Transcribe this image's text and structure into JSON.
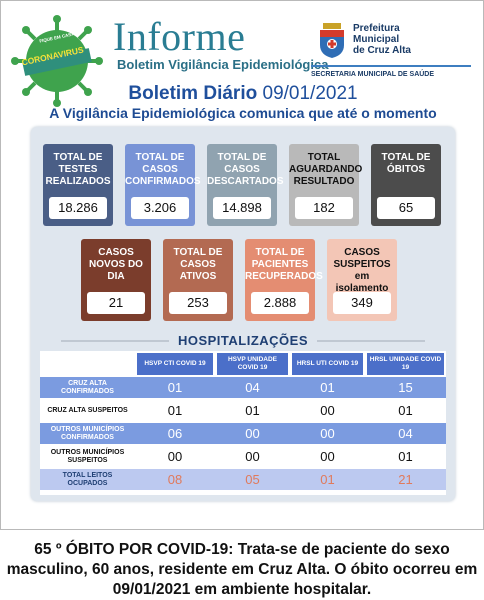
{
  "header": {
    "badge_text": "CORONAVIRUS",
    "badge_top_text": "FIQUE EM CASA",
    "title": "Informe",
    "subtitle": "Boletim Vigilância Epidemiológica",
    "prefeitura": [
      "Prefeitura",
      "Municipal",
      "de Cruz Alta"
    ],
    "secretaria": "SECRETARIA MUNICIPAL DE SAÚDE"
  },
  "boletim": {
    "label": "Boletim Diário",
    "date": "09/01/2021",
    "lead": "A Vigilância Epidemiológica comunica que até o momento"
  },
  "cards_row1": [
    {
      "label": "TOTAL DE TESTES REALIZADOS",
      "value": "18.286",
      "color": "#4a5e86"
    },
    {
      "label": "TOTAL DE CASOS CONFIRMADOS",
      "value": "3.206",
      "color": "#7893d6"
    },
    {
      "label": "TOTAL DE CASOS DESCARTADOS",
      "value": "14.898",
      "color": "#90a3b0"
    },
    {
      "label": "TOTAL AGUARDANDO RESULTADO",
      "value": "182",
      "color": "#b9b9b9"
    },
    {
      "label": "TOTAL DE ÓBITOS",
      "value": "65",
      "color": "#4c4c4c"
    }
  ],
  "cards_row2": [
    {
      "label": "CASOS NOVOS DO DIA",
      "value": "21",
      "color": "#7b3d2c"
    },
    {
      "label": "TOTAL DE CASOS ATIVOS",
      "value": "253",
      "color": "#b36a52"
    },
    {
      "label": "TOTAL DE PACIENTES RECUPERADOS",
      "value": "2.888",
      "color": "#e48d72"
    },
    {
      "label": "CASOS SUSPEITOS em isolamento domiciliar",
      "value": "349",
      "color": "#f3c6b6"
    }
  ],
  "hospital": {
    "title": "HOSPITALIZAÇÕES",
    "columns": [
      "HSVP CTI COVID 19",
      "HSVP UNIDADE COVID 19",
      "HRSL UTI COVID 19",
      "HRSL UNIDADE COVID 19"
    ],
    "rows": [
      {
        "label": "CRUZ ALTA CONFIRMADOS",
        "values": [
          "01",
          "04",
          "01",
          "15"
        ],
        "style": "blue"
      },
      {
        "label": "CRUZ ALTA SUSPEITOS",
        "values": [
          "01",
          "01",
          "00",
          "01"
        ],
        "style": "white"
      },
      {
        "label": "OUTROS MUNICÍPIOS CONFIRMADOS",
        "values": [
          "06",
          "00",
          "00",
          "04"
        ],
        "style": "blue"
      },
      {
        "label": "OUTROS MUNICÍPIOS SUSPEITOS",
        "values": [
          "00",
          "00",
          "00",
          "01"
        ],
        "style": "white"
      },
      {
        "label": "TOTAL LEITOS OCUPADOS",
        "values": [
          "08",
          "05",
          "01",
          "21"
        ],
        "style": "total"
      }
    ]
  },
  "footer": "65 º ÓBITO POR COVID-19: Trata-se de paciente do sexo masculino, 60 anos, residente em Cruz Alta. O óbito ocorreu em 09/01/2021 em ambiente hospitalar.",
  "colors": {
    "header_blue": "#4b6fc9",
    "row_blue": "#7b9be0",
    "total_row": "#bcc9f0",
    "total_num": "#e07a5c"
  }
}
